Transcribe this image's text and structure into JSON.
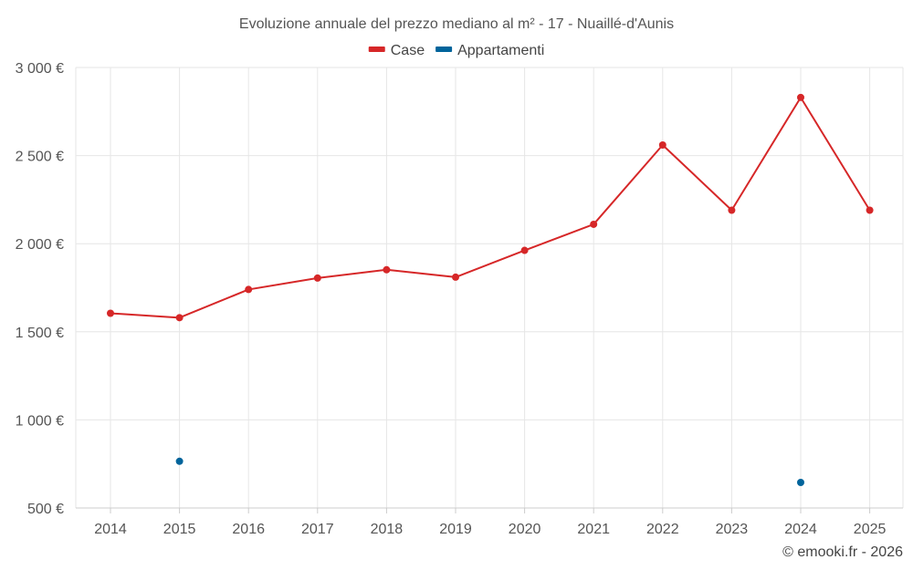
{
  "chart_data": {
    "type": "line",
    "title": "Evoluzione annuale del prezzo mediano al m² - 17 - Nuaillé-d'Aunis",
    "xlabel": "",
    "ylabel": "",
    "categories": [
      "2014",
      "2015",
      "2016",
      "2017",
      "2018",
      "2019",
      "2020",
      "2021",
      "2022",
      "2023",
      "2024",
      "2025"
    ],
    "ylim": [
      500,
      3000
    ],
    "yticks": [
      500,
      1000,
      1500,
      2000,
      2500,
      3000
    ],
    "ytick_labels": [
      "500 €",
      "1 000 €",
      "1 500 €",
      "2 000 €",
      "2 500 €",
      "3 000 €"
    ],
    "grid": true,
    "legend_position": "top-center",
    "series": [
      {
        "name": "Case",
        "color": "#d62728",
        "values": [
          1605,
          1580,
          1740,
          1805,
          1852,
          1810,
          1962,
          2110,
          2560,
          2190,
          2830,
          2190
        ]
      },
      {
        "name": "Appartamenti",
        "color": "#00649b",
        "values": [
          null,
          765,
          null,
          null,
          null,
          null,
          null,
          null,
          null,
          null,
          645,
          null
        ]
      }
    ],
    "credit": "© emooki.fr - 2026"
  }
}
